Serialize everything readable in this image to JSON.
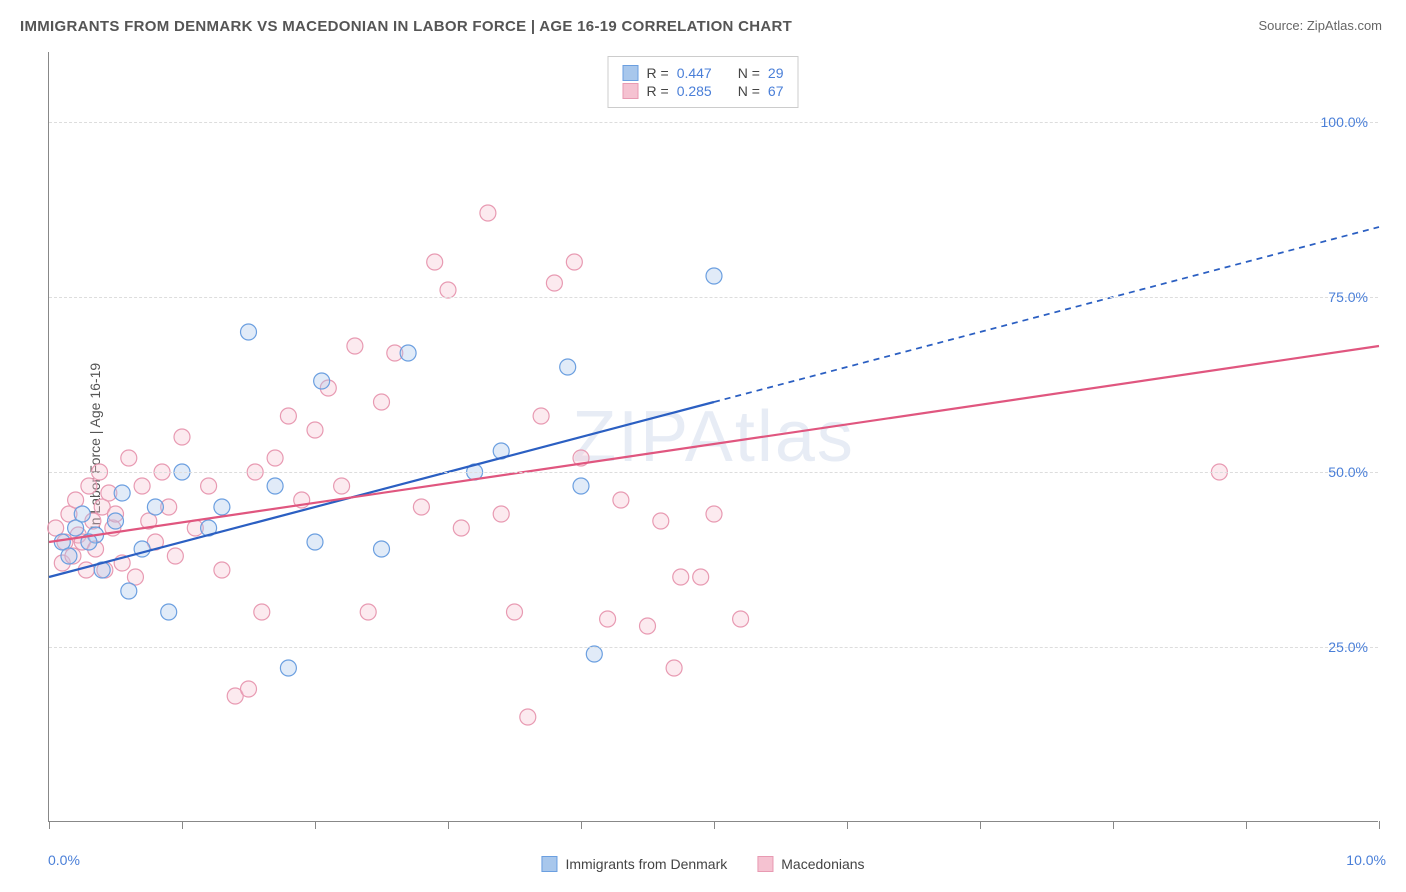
{
  "title": "IMMIGRANTS FROM DENMARK VS MACEDONIAN IN LABOR FORCE | AGE 16-19 CORRELATION CHART",
  "source": "Source: ZipAtlas.com",
  "y_axis_label": "In Labor Force | Age 16-19",
  "watermark": "ZIPAtlas",
  "chart": {
    "type": "scatter",
    "xlim": [
      0,
      10
    ],
    "ylim": [
      0,
      110
    ],
    "x_ticks": [
      0,
      1,
      2,
      3,
      4,
      5,
      6,
      7,
      8,
      9,
      10
    ],
    "x_tick_labels": {
      "0": "0.0%",
      "10": "10.0%"
    },
    "y_gridlines": [
      25,
      50,
      75,
      100
    ],
    "y_tick_labels": {
      "25": "25.0%",
      "50": "50.0%",
      "75": "75.0%",
      "100": "100.0%"
    },
    "grid_color": "#dddddd",
    "axis_color": "#888888",
    "background_color": "#ffffff",
    "marker_radius": 8,
    "marker_stroke_width": 1.2,
    "marker_fill_opacity": 0.35,
    "series": [
      {
        "name": "Immigrants from Denmark",
        "color_stroke": "#6b9fe0",
        "color_fill": "#a8c7ec",
        "r_value": "0.447",
        "n_value": "29",
        "trend": {
          "x1": 0,
          "y1": 35,
          "x2": 5,
          "y2": 60,
          "solid_until_x": 5,
          "dash_x2": 10,
          "dash_y2": 85,
          "width": 2.2,
          "color": "#2b5fc2"
        },
        "points": [
          [
            0.1,
            40
          ],
          [
            0.15,
            38
          ],
          [
            0.2,
            42
          ],
          [
            0.25,
            44
          ],
          [
            0.4,
            36
          ],
          [
            0.5,
            43
          ],
          [
            0.55,
            47
          ],
          [
            0.6,
            33
          ],
          [
            0.9,
            30
          ],
          [
            1.0,
            50
          ],
          [
            1.2,
            42
          ],
          [
            1.5,
            70
          ],
          [
            1.7,
            48
          ],
          [
            1.8,
            22
          ],
          [
            2.0,
            40
          ],
          [
            2.05,
            63
          ],
          [
            2.5,
            39
          ],
          [
            2.7,
            67
          ],
          [
            3.2,
            50
          ],
          [
            3.4,
            53
          ],
          [
            3.9,
            65
          ],
          [
            4.0,
            48
          ],
          [
            4.1,
            24
          ],
          [
            5.0,
            78
          ],
          [
            0.8,
            45
          ],
          [
            0.35,
            41
          ],
          [
            1.3,
            45
          ],
          [
            0.7,
            39
          ],
          [
            0.3,
            40
          ]
        ]
      },
      {
        "name": "Macedonians",
        "color_stroke": "#e89ab2",
        "color_fill": "#f5c2d1",
        "r_value": "0.285",
        "n_value": "67",
        "trend": {
          "x1": 0,
          "y1": 40,
          "x2": 10,
          "y2": 68,
          "solid_until_x": 10,
          "width": 2.2,
          "color": "#e0567f"
        },
        "points": [
          [
            0.05,
            42
          ],
          [
            0.1,
            37
          ],
          [
            0.12,
            40
          ],
          [
            0.15,
            44
          ],
          [
            0.18,
            38
          ],
          [
            0.2,
            46
          ],
          [
            0.22,
            41
          ],
          [
            0.25,
            40
          ],
          [
            0.28,
            36
          ],
          [
            0.3,
            48
          ],
          [
            0.33,
            43
          ],
          [
            0.35,
            39
          ],
          [
            0.38,
            50
          ],
          [
            0.4,
            45
          ],
          [
            0.42,
            36
          ],
          [
            0.45,
            47
          ],
          [
            0.48,
            42
          ],
          [
            0.5,
            44
          ],
          [
            0.55,
            37
          ],
          [
            0.6,
            52
          ],
          [
            0.65,
            35
          ],
          [
            0.7,
            48
          ],
          [
            0.75,
            43
          ],
          [
            0.8,
            40
          ],
          [
            0.85,
            50
          ],
          [
            0.9,
            45
          ],
          [
            0.95,
            38
          ],
          [
            1.0,
            55
          ],
          [
            1.1,
            42
          ],
          [
            1.2,
            48
          ],
          [
            1.3,
            36
          ],
          [
            1.4,
            18
          ],
          [
            1.5,
            19
          ],
          [
            1.55,
            50
          ],
          [
            1.6,
            30
          ],
          [
            1.7,
            52
          ],
          [
            1.8,
            58
          ],
          [
            1.9,
            46
          ],
          [
            2.0,
            56
          ],
          [
            2.1,
            62
          ],
          [
            2.2,
            48
          ],
          [
            2.3,
            68
          ],
          [
            2.4,
            30
          ],
          [
            2.5,
            60
          ],
          [
            2.6,
            67
          ],
          [
            2.8,
            45
          ],
          [
            2.9,
            80
          ],
          [
            3.0,
            76
          ],
          [
            3.1,
            42
          ],
          [
            3.3,
            87
          ],
          [
            3.4,
            44
          ],
          [
            3.5,
            30
          ],
          [
            3.6,
            15
          ],
          [
            3.7,
            58
          ],
          [
            3.8,
            77
          ],
          [
            4.0,
            52
          ],
          [
            4.2,
            29
          ],
          [
            4.3,
            46
          ],
          [
            4.5,
            28
          ],
          [
            4.6,
            43
          ],
          [
            4.7,
            22
          ],
          [
            4.75,
            35
          ],
          [
            5.0,
            44
          ],
          [
            5.2,
            29
          ],
          [
            4.9,
            35
          ],
          [
            3.95,
            80
          ],
          [
            8.8,
            50
          ]
        ]
      }
    ]
  },
  "legend_top": {
    "r_label": "R =",
    "n_label": "N ="
  },
  "legend_bottom": [
    {
      "label": "Immigrants from Denmark",
      "stroke": "#6b9fe0",
      "fill": "#a8c7ec"
    },
    {
      "label": "Macedonians",
      "stroke": "#e89ab2",
      "fill": "#f5c2d1"
    }
  ]
}
